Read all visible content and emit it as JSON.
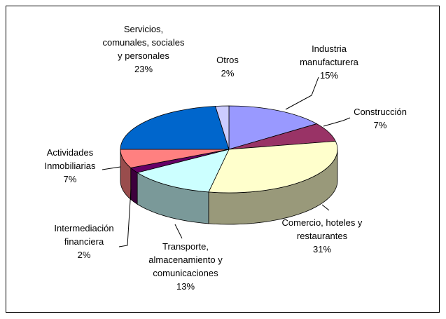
{
  "chart_data": {
    "type": "pie3d",
    "categories": [
      "Industria manufacturera",
      "Construcción",
      "Comercio, hoteles y restaurantes",
      "Transporte, almacenamiento y comunicaciones",
      "Intermediación financiera",
      "Actividades Inmobiliarias",
      "Servicios, comunales, sociales y personales",
      "Otros"
    ],
    "values": [
      15,
      7,
      31,
      13,
      2,
      7,
      23,
      2
    ],
    "value_labels": [
      "15%",
      "7%",
      "31%",
      "13%",
      "2%",
      "7%",
      "23%",
      "2%"
    ],
    "colors": [
      "#9999ff",
      "#993366",
      "#ffffcc",
      "#ccffff",
      "#660066",
      "#ff8080",
      "#0066cc",
      "#ccccff"
    ]
  }
}
